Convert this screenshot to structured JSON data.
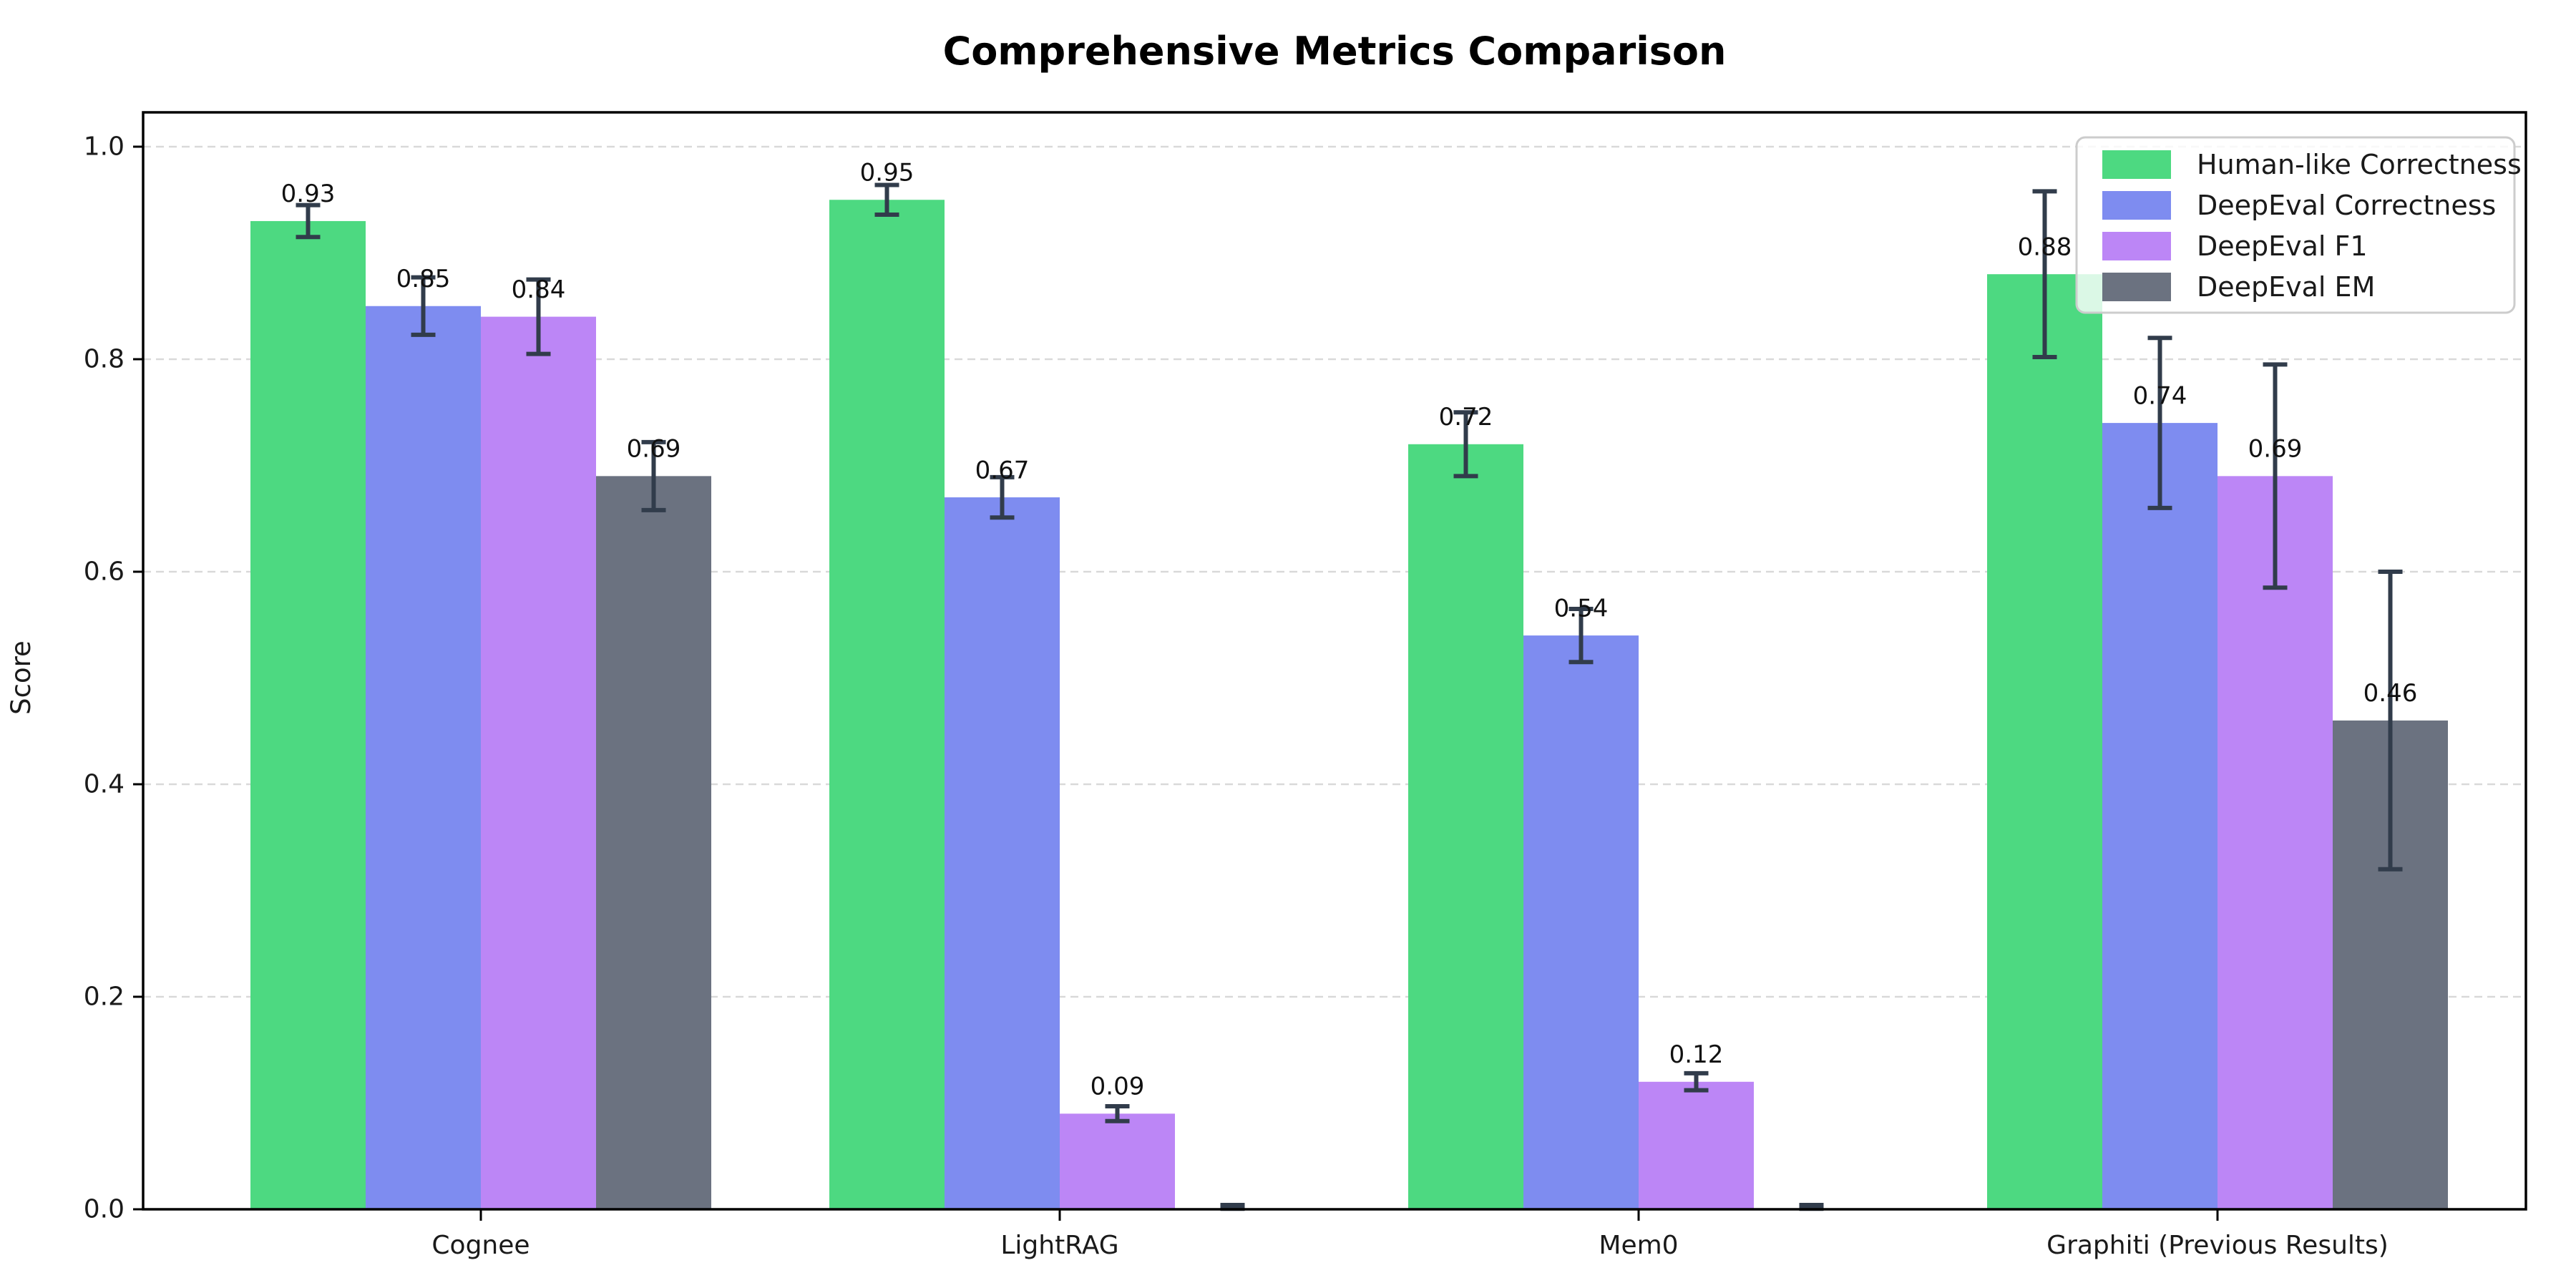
{
  "chart_data": {
    "type": "bar",
    "title": "Comprehensive Metrics Comparison",
    "xlabel": "",
    "ylabel": "Score",
    "categories": [
      "Cognee",
      "LightRAG",
      "Mem0",
      "Graphiti (Previous Results)"
    ],
    "series": [
      {
        "name": "Human-like Correctness",
        "color": "#4dd981",
        "values": [
          0.93,
          0.95,
          0.72,
          0.88
        ],
        "errors": [
          0.015,
          0.014,
          0.03,
          0.078
        ],
        "value_labels": [
          "0.93",
          "0.95",
          "0.72",
          "0.88"
        ]
      },
      {
        "name": "DeepEval Correctness",
        "color": "#7e8cf0",
        "values": [
          0.85,
          0.67,
          0.54,
          0.74
        ],
        "errors": [
          0.027,
          0.019,
          0.025,
          0.08
        ],
        "value_labels": [
          "0.85",
          "0.67",
          "0.54",
          "0.74"
        ]
      },
      {
        "name": "DeepEval F1",
        "color": "#bc86f6",
        "values": [
          0.84,
          0.09,
          0.12,
          0.69
        ],
        "errors": [
          0.035,
          0.007,
          0.008,
          0.105
        ],
        "value_labels": [
          "0.84",
          "0.09",
          "0.12",
          "0.69"
        ]
      },
      {
        "name": "DeepEval EM",
        "color": "#6b7280",
        "values": [
          0.69,
          0.0,
          0.0,
          0.46
        ],
        "errors": [
          0.032,
          0.004,
          0.004,
          0.14
        ],
        "value_labels": [
          "0.69",
          "",
          "",
          "0.46"
        ]
      }
    ],
    "yticks": [
      "0.0",
      "0.2",
      "0.4",
      "0.6",
      "0.8",
      "1.0"
    ],
    "ytick_values": [
      0.0,
      0.2,
      0.4,
      0.6,
      0.8,
      1.0
    ],
    "ylim": [
      0,
      1.033
    ],
    "grid": "horizontal-dashed",
    "legend_position": "upper-right",
    "colors": {
      "error_bar": "#313c4b",
      "grid_line": "#d9d9d9",
      "axis_spine": "#000000",
      "legend_border": "#cccccc",
      "legend_background": "rgba(255,255,255,0.8)"
    }
  }
}
